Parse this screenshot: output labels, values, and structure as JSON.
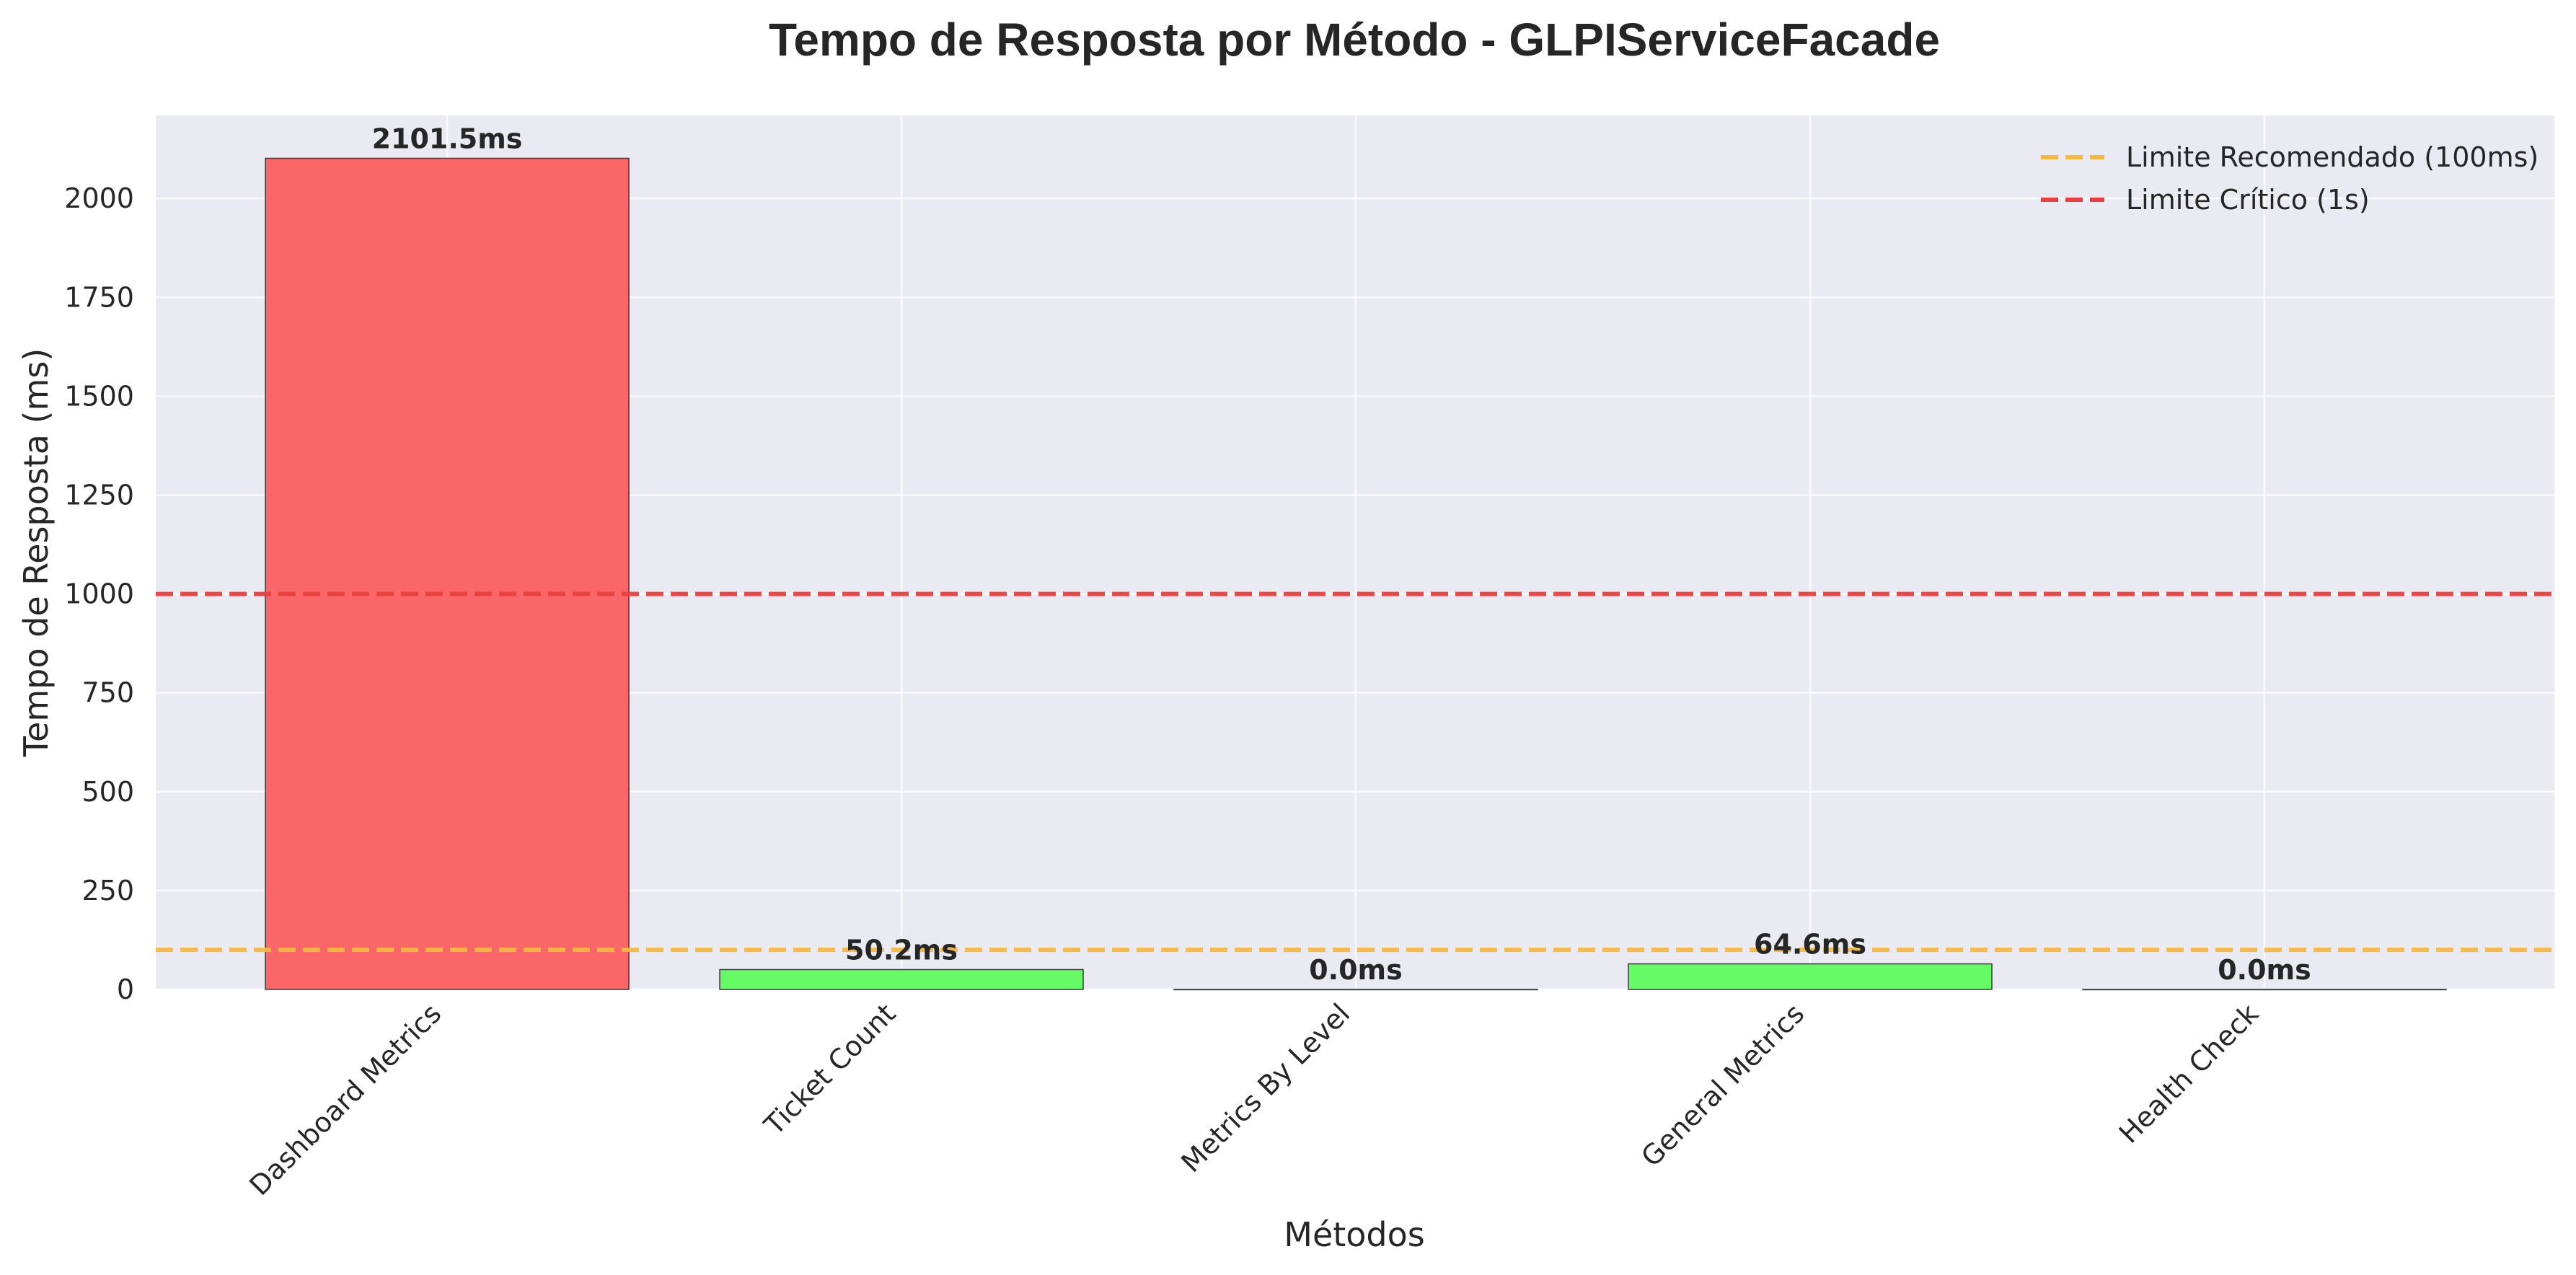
{
  "chart_data": {
    "type": "bar",
    "title": "Tempo de Resposta por Método - GLPIServiceFacade",
    "xlabel": "Métodos",
    "ylabel": "Tempo de Resposta (ms)",
    "categories": [
      "Dashboard Metrics",
      "Ticket Count",
      "Metrics By Level",
      "General Metrics",
      "Health Check"
    ],
    "values": [
      2101.5,
      50.2,
      0.0,
      64.6,
      0.0
    ],
    "data_labels": [
      "2101.5ms",
      "50.2ms",
      "0.0ms",
      "64.6ms",
      "0.0ms"
    ],
    "bar_colors": [
      "#fb6769",
      "#66fa66",
      "#66fa66",
      "#66fa66",
      "#66fa66"
    ],
    "ylim": [
      0,
      2210
    ],
    "yticks": [
      0,
      250,
      500,
      750,
      1000,
      1250,
      1500,
      1750,
      2000
    ],
    "ytick_labels": [
      "0",
      "250",
      "500",
      "750",
      "1000",
      "1250",
      "1500",
      "1750",
      "2000"
    ],
    "reference_lines": [
      {
        "label": "Limite Recomendado (100ms)",
        "value": 100,
        "color": "#f5b942",
        "style": "dashed"
      },
      {
        "label": "Limite Crítico (1s)",
        "value": 1000,
        "color": "#ea3f3f",
        "style": "dashed"
      }
    ],
    "grid": true,
    "legend_position": "top-right",
    "plot_background": "#eaeaf2",
    "xtick_rotation": "45-degree"
  }
}
